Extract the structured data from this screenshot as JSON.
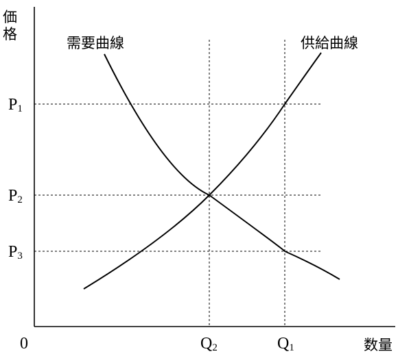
{
  "axes": {
    "y_label_top": "価",
    "y_label_bottom": "格",
    "x_label": "数量",
    "origin": "0"
  },
  "curves": {
    "demand": "需要曲線",
    "supply": "供給曲線"
  },
  "price_levels": [
    {
      "letter": "P",
      "sub": "1"
    },
    {
      "letter": "P",
      "sub": "2"
    },
    {
      "letter": "P",
      "sub": "3"
    }
  ],
  "quantity_levels": [
    {
      "letter": "Q",
      "sub": "2"
    },
    {
      "letter": "Q",
      "sub": "1"
    }
  ]
}
